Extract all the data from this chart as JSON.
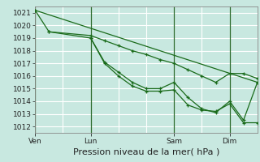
{
  "background_color": "#c8e8e0",
  "grid_color": "#ffffff",
  "line_color": "#1a6b1a",
  "ylim": [
    1011.5,
    1021.5
  ],
  "yticks": [
    1012,
    1013,
    1014,
    1015,
    1016,
    1017,
    1018,
    1019,
    1020,
    1021
  ],
  "xlabel": "Pression niveau de la mer( hPa )",
  "xlabel_fontsize": 8,
  "tick_fontsize": 6.5,
  "vline_color": "#2d6b2d",
  "day_labels": [
    "Ven",
    "Lun",
    "Sam",
    "Dim"
  ],
  "day_positions": [
    0,
    48,
    120,
    168
  ],
  "total_hours": 192,
  "lines": [
    {
      "x": [
        0,
        192
      ],
      "y": [
        1021.2,
        1015.5
      ]
    },
    {
      "x": [
        0,
        12,
        48,
        60,
        72,
        84,
        96,
        108,
        120,
        132,
        144,
        156,
        168,
        180,
        192
      ],
      "y": [
        1021.2,
        1019.5,
        1019.0,
        1017.1,
        1016.3,
        1015.5,
        1015.0,
        1015.0,
        1015.5,
        1014.3,
        1013.4,
        1013.1,
        1014.0,
        1012.5,
        1015.5
      ]
    },
    {
      "x": [
        48,
        60,
        72,
        84,
        96,
        108,
        120,
        132,
        144,
        156,
        168,
        180,
        192
      ],
      "y": [
        1019.0,
        1017.0,
        1016.0,
        1015.2,
        1014.8,
        1014.8,
        1014.9,
        1013.7,
        1013.3,
        1013.2,
        1013.8,
        1012.3,
        1012.3
      ]
    },
    {
      "x": [
        12,
        48,
        60,
        72,
        84,
        96,
        108,
        120,
        132,
        144,
        156,
        168,
        180,
        192
      ],
      "y": [
        1019.5,
        1019.2,
        1018.8,
        1018.4,
        1018.0,
        1017.7,
        1017.3,
        1017.0,
        1016.5,
        1016.0,
        1015.5,
        1016.2,
        1016.2,
        1015.8
      ]
    }
  ]
}
